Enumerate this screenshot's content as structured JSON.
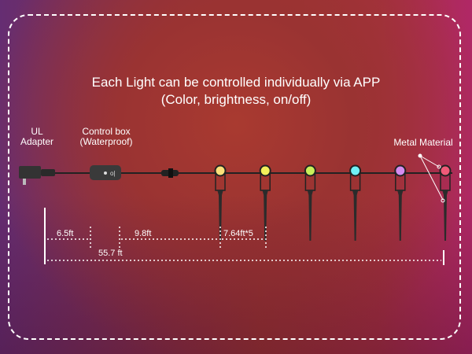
{
  "headline": {
    "line1": "Each Light can be controlled individually via APP",
    "line2": "(Color, brightness, on/off)"
  },
  "labels": {
    "adapter_1": "UL",
    "adapter_2": "Adapter",
    "control_1": "Control box",
    "control_2": "(Waterproof)",
    "metal": "Metal Material"
  },
  "dimensions": {
    "d1": "6.5ft",
    "d2": "9.8ft",
    "d3": "7.64ft*5",
    "total": "55.7 ft"
  },
  "lights": [
    {
      "color": "#fbe07a"
    },
    {
      "color": "#f2f05a"
    },
    {
      "color": "#c8ef5a"
    },
    {
      "color": "#6ff0f5"
    },
    {
      "color": "#d58cf0"
    },
    {
      "color": "#f05a78"
    }
  ]
}
